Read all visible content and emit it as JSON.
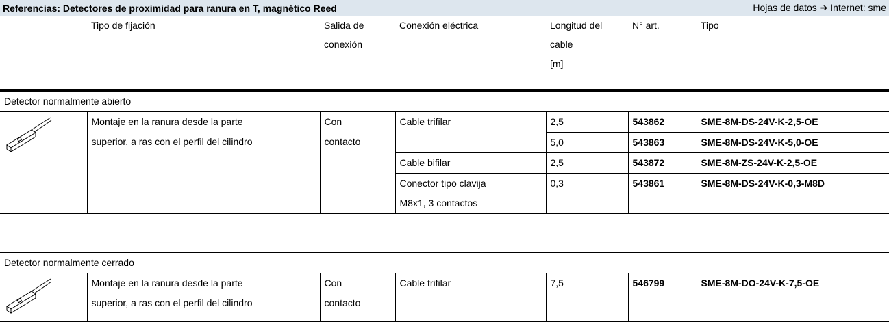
{
  "header": {
    "title": "Referencias: Detectores de proximidad para ranura en T, magnético Reed",
    "link": "Hojas de datos ➔ Internet: sme"
  },
  "columns": [
    "",
    "Tipo de fijación",
    "Salida de\nconexión",
    "Conexión eléctrica",
    "Longitud del\ncable\n[m]",
    "N° art.",
    "Tipo"
  ],
  "sections": [
    {
      "title": "Detector normalmente abierto",
      "fixing": "Montaje en la ranura desde la parte\nsuperior, a ras con el perfil del cilindro",
      "output": "Con\ncontacto",
      "connections": [
        {
          "label": "Cable trifilar",
          "items": [
            {
              "length": "2,5",
              "art": "543862",
              "type": "SME-8M-DS-24V-K-2,5-OE"
            },
            {
              "length": "5,0",
              "art": "543863",
              "type": "SME-8M-DS-24V-K-5,0-OE"
            }
          ]
        },
        {
          "label": "Cable bifilar",
          "items": [
            {
              "length": "2,5",
              "art": "543872",
              "type": "SME-8M-ZS-24V-K-2,5-OE"
            }
          ]
        },
        {
          "label": "Conector tipo clavija\nM8x1, 3 contactos",
          "items": [
            {
              "length": "0,3",
              "art": "543861",
              "type": "SME-8M-DS-24V-K-0,3-M8D"
            }
          ]
        }
      ]
    },
    {
      "title": "Detector normalmente cerrado",
      "fixing": "Montaje en la ranura desde la parte\nsuperior, a ras con el perfil del cilindro",
      "output": "Con\ncontacto",
      "connections": [
        {
          "label": "Cable trifilar",
          "items": [
            {
              "length": "7,5",
              "art": "546799",
              "type": "SME-8M-DO-24V-K-7,5-OE"
            }
          ]
        }
      ]
    }
  ]
}
